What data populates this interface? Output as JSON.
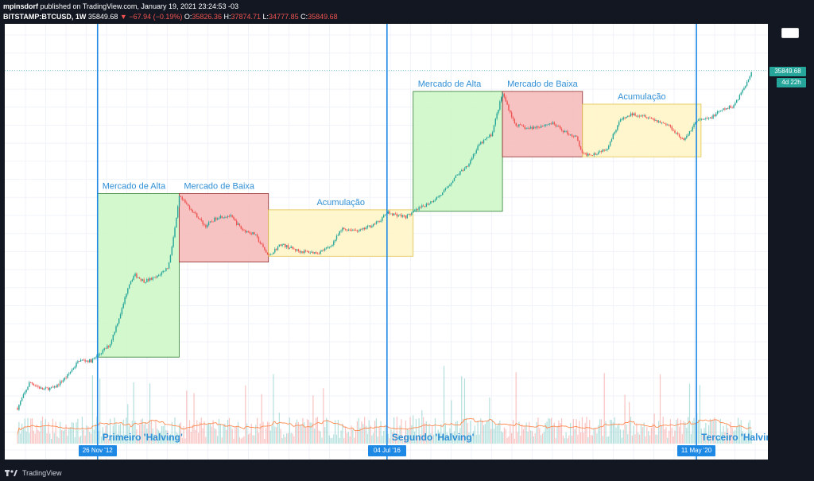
{
  "header": {
    "publisher": "mpinsdorf",
    "published_text": "published on TradingView.com, January 19, 2021 23:24:53 -03",
    "symbol": "BITSTAMP:BTCUSD, 1W",
    "last": "35849.68",
    "change": "▼ −67.94 (−0.19%)",
    "o_label": "O:",
    "o_val": "35826.36",
    "h_label": "H:",
    "h_val": "37874.71",
    "l_label": "L:",
    "l_val": "34777.85",
    "c_label": "C:",
    "c_val": "35849.68"
  },
  "price_tag": "35849.68",
  "time_tag": "4d 22h",
  "footer": {
    "brand": "TradingView"
  },
  "colors": {
    "bull_zone": "#ccf7c4",
    "bear_zone": "#f6b7b7",
    "accum_zone": "#fff5c4",
    "halving_line": "#1e88e5",
    "label_text": "#2f8fd6",
    "up": "#26a69a",
    "down": "#ef5350",
    "ma": "#ff8a50"
  },
  "chart_data": {
    "type": "line",
    "title": "",
    "xlabel": "",
    "ylabel": "",
    "halvings": [
      {
        "date_label": "26 Nov '12",
        "name": "Primeiro 'Halving'"
      },
      {
        "date_label": "04 Jul '16",
        "name": "Segundo 'Halving'"
      },
      {
        "date_label": "11 May '20",
        "name": "Terceiro 'Halving'"
      }
    ],
    "zones": [
      {
        "label": "Mercado de Alta",
        "kind": "bull",
        "x_range": [
          "2012-11-26",
          "2013-12-02"
        ],
        "y_range": [
          12,
          1150
        ]
      },
      {
        "label": "Mercado de Baixa",
        "kind": "bear",
        "x_range": [
          "2013-12-02",
          "2015-01-12"
        ],
        "y_range": [
          170,
          1150
        ]
      },
      {
        "label": "Acumulação",
        "kind": "accum",
        "x_range": [
          "2015-01-12",
          "2016-10-31"
        ],
        "y_range": [
          200,
          730
        ]
      },
      {
        "label": "Mercado de Alta",
        "kind": "bull",
        "x_range": [
          "2016-10-31",
          "2017-12-11"
        ],
        "y_range": [
          700,
          19800
        ]
      },
      {
        "label": "Mercado de Baixa",
        "kind": "bear",
        "x_range": [
          "2017-12-11",
          "2018-12-10"
        ],
        "y_range": [
          3200,
          19800
        ]
      },
      {
        "label": "Acumulação",
        "kind": "accum",
        "x_range": [
          "2018-12-10",
          "2020-06-01"
        ],
        "y_range": [
          3200,
          13900
        ]
      }
    ],
    "price_series": {
      "name": "BTCUSD",
      "x": [
        "2011-11-28",
        "2012-01-23",
        "2012-03-19",
        "2012-05-14",
        "2012-07-09",
        "2012-09-03",
        "2012-10-29",
        "2012-11-26",
        "2013-01-21",
        "2013-03-18",
        "2013-04-15",
        "2013-05-13",
        "2013-06-24",
        "2013-08-19",
        "2013-10-14",
        "2013-11-18",
        "2013-12-02",
        "2014-02-03",
        "2014-03-31",
        "2014-05-26",
        "2014-07-21",
        "2014-09-15",
        "2014-11-10",
        "2015-01-12",
        "2015-03-09",
        "2015-06-01",
        "2015-08-24",
        "2015-10-19",
        "2015-12-14",
        "2016-03-07",
        "2016-05-30",
        "2016-07-04",
        "2016-09-26",
        "2016-11-21",
        "2017-01-16",
        "2017-03-13",
        "2017-05-08",
        "2017-07-03",
        "2017-08-28",
        "2017-10-23",
        "2017-12-11",
        "2018-02-05",
        "2018-04-02",
        "2018-05-28",
        "2018-07-23",
        "2018-09-17",
        "2018-11-12",
        "2018-12-10",
        "2019-02-04",
        "2019-04-01",
        "2019-05-27",
        "2019-07-22",
        "2019-09-16",
        "2019-11-11",
        "2020-01-06",
        "2020-03-16",
        "2020-05-11",
        "2020-07-06",
        "2020-08-31",
        "2020-10-26",
        "2020-12-21",
        "2021-01-18"
      ],
      "y": [
        2.9,
        6.0,
        4.9,
        5.1,
        7.0,
        11.0,
        10.8,
        12.5,
        17.0,
        47,
        90,
        120,
        100,
        110,
        150,
        530,
        1050,
        700,
        460,
        600,
        620,
        420,
        370,
        200,
        280,
        230,
        220,
        260,
        430,
        410,
        530,
        675,
        600,
        740,
        900,
        1150,
        1800,
        2500,
        4500,
        6000,
        19000,
        8000,
        7000,
        7500,
        8200,
        6500,
        5500,
        3400,
        3500,
        4100,
        8700,
        10500,
        10200,
        8800,
        7700,
        5000,
        8800,
        9200,
        11600,
        13200,
        23800,
        35849.68
      ]
    },
    "scale": "log",
    "y_range": [
      2,
      45000
    ],
    "x_range": [
      "2011-10-01",
      "2021-04-01"
    ],
    "volume": "shown",
    "moving_average": "shown",
    "grid": true
  }
}
